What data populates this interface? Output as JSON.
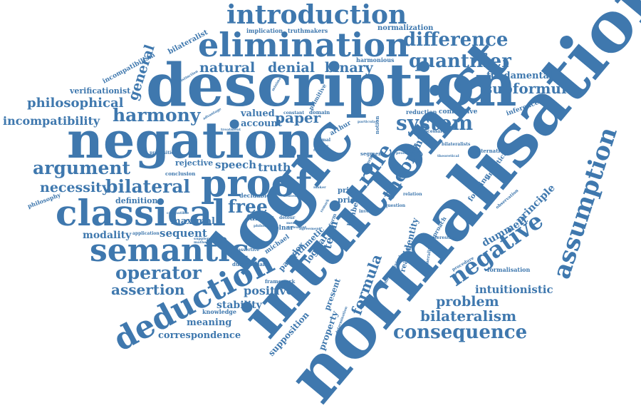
{
  "color": "#3f78ae",
  "words": {
    "normalisation": "normalisation",
    "intuitionist": "intuitionist",
    "logic": "logic",
    "description": "description",
    "negation": "negation",
    "elimination": "elimination",
    "introduction": "introduction",
    "classical": "classical",
    "semantic": "semantic",
    "deduction": "deduction",
    "proof": "proof",
    "assumption": "assumption",
    "negative": "negative",
    "harmony": "harmony",
    "argument": "argument",
    "bilateral": "bilateral",
    "difference": "difference",
    "quantifier": "quantifier",
    "subformula": "subformula",
    "system": "system",
    "consequence": "consequence",
    "bilateralism": "bilateralism",
    "operator": "operator",
    "assertion": "assertion",
    "philosophical": "philosophical",
    "incompatibility": "incompatibility",
    "necessity": "necessity",
    "natural": "natural",
    "denial": "denial",
    "binary": "binary",
    "general": "general",
    "free": "free",
    "rule": "rule",
    "theory": "theory",
    "formula": "formula",
    "problem": "problem",
    "intuitionistic": "intuitionistic",
    "dummett": "dummett",
    "principle": "principle",
    "paper": "paper",
    "sequent": "sequent",
    "modality": "modality",
    "positive": "positive",
    "stability": "stability",
    "meaning": "meaning",
    "correspondence": "correspondence",
    "speech": "speech",
    "truth": "truth",
    "valued": "valued",
    "account": "account",
    "fundamental": "fundamental",
    "verificationist": "verificationist",
    "incompatibilism": "incompatibilism",
    "bilateralist": "bilateralist",
    "implication": "implication",
    "truthmakers": "truthmakers",
    "normalization": "normalization",
    "harmonious": "harmonious",
    "connective": "connective",
    "inference": "inference",
    "reduction": "reduction",
    "definition": "definition",
    "maximal": "maximal",
    "rejective": "rejective",
    "conclusion": "conclusion",
    "philosophy": "philosophy",
    "application": "application",
    "decidable": "decidable",
    "falsity": "falsity",
    "knowledge": "knowledge",
    "dummettian": "dummettian",
    "supposition": "supposition",
    "property": "property",
    "present": "present",
    "arithmetic": "arithmetic",
    "paradox": "paradox",
    "logical": "logical",
    "term": "term",
    "identity": "identity",
    "realism": "realism",
    "molnar": "molnar",
    "michael": "michael",
    "framework": "framework",
    "forming": "forming",
    "analyticity": "analyticity",
    "formalisation": "formalisation",
    "alternative": "alternative",
    "price": "price",
    "prior": "prior",
    "lambert": "lambert",
    "rumfitt": "rumfitt",
    "segment": "segment",
    "domain": "domain",
    "constant": "constant",
    "notion": "notion",
    "arthur": "arthur",
    "normal": "normal",
    "primitive": "primitive",
    "theories": "theories",
    "proposition": "proposition",
    "interesting": "interesting",
    "approach": "approach",
    "procedure": "procedure",
    "generality": "generality",
    "relation": "relation",
    "question": "question",
    "inversion": "inversion",
    "necessary": "necessary",
    "bilateralists": "bilateralists",
    "observation": "observation",
    "treatment": "treatment",
    "advantage": "advantage",
    "distinction": "distinction",
    "minimal": "minimal",
    "assertive": "assertive",
    "nelson": "nelson",
    "detour": "detour",
    "member": "member",
    "statement": "statement",
    "sentence": "sentence",
    "metaphysical": "metaphysical",
    "determination": "determination",
    "theoretical": "theoretical",
    "particular": "particular",
    "maker": "maker",
    "making": "making",
    "forms": "forms",
    "remark": "remark",
    "form": "form",
    "proofs": "proofs",
    "agreement": "agreement",
    "compatible": "compatible",
    "supplement": "supplement",
    "mathematical": "mathematical",
    "philosopher": "philosopher"
  }
}
